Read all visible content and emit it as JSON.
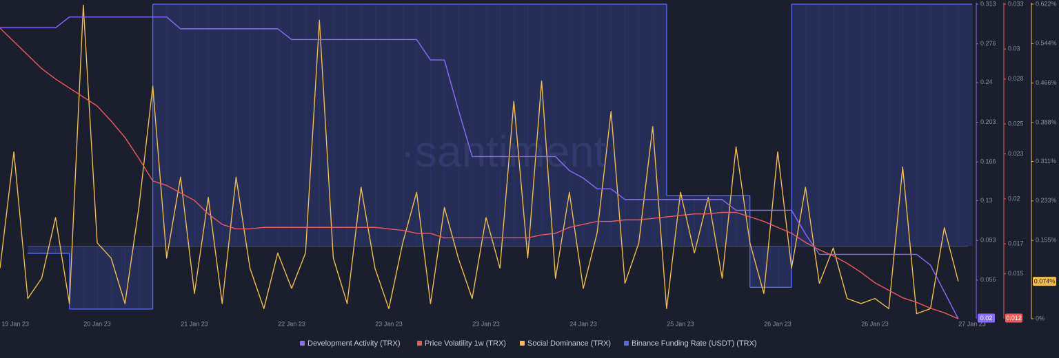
{
  "chart_data": {
    "type": "line",
    "watermark": "·santiment",
    "xlim": [
      0,
      70
    ],
    "xticks": [
      {
        "value": 1.1,
        "label": "19 Jan 23"
      },
      {
        "value": 7,
        "label": "20 Jan 23"
      },
      {
        "value": 14,
        "label": "21 Jan 23"
      },
      {
        "value": 21,
        "label": "22 Jan 23"
      },
      {
        "value": 28,
        "label": "23 Jan 23"
      },
      {
        "value": 35,
        "label": "23 Jan 23"
      },
      {
        "value": 42,
        "label": "24 Jan 23"
      },
      {
        "value": 49,
        "label": "25 Jan 23"
      },
      {
        "value": 56,
        "label": "26 Jan 23"
      },
      {
        "value": 63,
        "label": "26 Jan 23"
      },
      {
        "value": 70,
        "label": "27 Jan 23"
      }
    ],
    "series": [
      {
        "name": "Development Activity (TRX)",
        "color": "#8c6cff",
        "style": "line",
        "ylim": [
          0.02,
          0.313
        ],
        "yticks": [
          0.313,
          0.276,
          0.24,
          0.203,
          0.166,
          0.13,
          0.093,
          0.056
        ],
        "values": [
          0.291,
          0.291,
          0.291,
          0.291,
          0.291,
          0.301,
          0.301,
          0.301,
          0.301,
          0.301,
          0.301,
          0.301,
          0.301,
          0.29,
          0.29,
          0.29,
          0.29,
          0.29,
          0.29,
          0.29,
          0.29,
          0.28,
          0.28,
          0.28,
          0.28,
          0.28,
          0.28,
          0.28,
          0.28,
          0.28,
          0.28,
          0.261,
          0.261,
          0.215,
          0.171,
          0.171,
          0.171,
          0.171,
          0.171,
          0.171,
          0.171,
          0.158,
          0.151,
          0.141,
          0.141,
          0.131,
          0.131,
          0.131,
          0.131,
          0.131,
          0.131,
          0.131,
          0.131,
          0.121,
          0.121,
          0.121,
          0.121,
          0.121,
          0.099,
          0.08,
          0.08,
          0.08,
          0.08,
          0.08,
          0.08,
          0.08,
          0.08,
          0.07,
          0.045,
          0.02
        ]
      },
      {
        "name": "Price Volatility 1w (TRX)",
        "color": "#ef5b5b",
        "style": "line",
        "ylim": [
          0.012,
          0.033
        ],
        "yticks": [
          0.033,
          0.03,
          0.028,
          0.025,
          0.023,
          0.02,
          0.017,
          0.015
        ],
        "values": [
          0.0314,
          0.0305,
          0.0296,
          0.0287,
          0.028,
          0.0274,
          0.0268,
          0.0262,
          0.0252,
          0.0241,
          0.0227,
          0.0212,
          0.0209,
          0.0204,
          0.0199,
          0.019,
          0.0183,
          0.018,
          0.018,
          0.0181,
          0.0181,
          0.0181,
          0.0181,
          0.0181,
          0.0181,
          0.0181,
          0.0181,
          0.0181,
          0.018,
          0.0179,
          0.0177,
          0.0177,
          0.0174,
          0.0174,
          0.0174,
          0.0174,
          0.0174,
          0.0174,
          0.0174,
          0.0176,
          0.0177,
          0.0181,
          0.0183,
          0.0185,
          0.0185,
          0.0186,
          0.0186,
          0.0187,
          0.0188,
          0.0189,
          0.019,
          0.019,
          0.0191,
          0.0191,
          0.0188,
          0.0185,
          0.0181,
          0.0177,
          0.0171,
          0.0166,
          0.0162,
          0.0157,
          0.0151,
          0.0144,
          0.0139,
          0.0134,
          0.0131,
          0.0127,
          0.0124,
          0.012
        ]
      },
      {
        "name": "Social Dominance (TRX)",
        "color": "#f2bf4b",
        "style": "line",
        "ylim": [
          0,
          0.622
        ],
        "yticks": [
          {
            "value": 0.622,
            "label": "0.622%"
          },
          {
            "value": 0.544,
            "label": "0.544%"
          },
          {
            "value": 0.466,
            "label": "0.466%"
          },
          {
            "value": 0.388,
            "label": "0.388%"
          },
          {
            "value": 0.311,
            "label": "0.311%"
          },
          {
            "value": 0.233,
            "label": "0.233%"
          },
          {
            "value": 0.155,
            "label": "0.155%"
          },
          {
            "value": 0,
            "label": "0%"
          }
        ],
        "values": [
          0.1,
          0.33,
          0.04,
          0.08,
          0.2,
          0.03,
          0.62,
          0.15,
          0.12,
          0.03,
          0.22,
          0.46,
          0.12,
          0.28,
          0.05,
          0.24,
          0.03,
          0.28,
          0.1,
          0.02,
          0.13,
          0.06,
          0.13,
          0.59,
          0.12,
          0.03,
          0.26,
          0.1,
          0.02,
          0.15,
          0.25,
          0.03,
          0.22,
          0.12,
          0.04,
          0.2,
          0.1,
          0.43,
          0.12,
          0.47,
          0.08,
          0.25,
          0.06,
          0.17,
          0.41,
          0.07,
          0.15,
          0.38,
          0.02,
          0.25,
          0.13,
          0.24,
          0.08,
          0.34,
          0.15,
          0.05,
          0.33,
          0.1,
          0.26,
          0.07,
          0.14,
          0.04,
          0.03,
          0.04,
          0.02,
          0.3,
          0.01,
          0.02,
          0.18,
          0.074
        ],
        "value_labels": [
          null,
          null,
          null,
          null,
          null,
          null,
          null,
          null,
          null,
          null,
          null,
          null,
          null,
          null,
          null,
          null,
          null,
          null,
          null,
          null,
          null,
          null,
          null,
          null,
          null,
          null,
          null,
          null,
          null,
          null,
          null,
          null,
          null,
          null,
          null,
          null,
          null,
          null,
          null,
          null,
          null,
          null,
          null,
          null,
          null,
          null,
          null,
          null,
          null,
          null,
          null,
          null,
          null,
          null,
          null,
          null,
          null,
          null,
          null,
          null,
          null,
          null,
          null,
          null,
          null,
          null,
          null,
          null,
          null,
          "0.074%"
        ]
      },
      {
        "name": "Binance Funding Rate (USDT) (TRX)",
        "color": "#5468ff",
        "style": "step-area",
        "ylim": [
          -0.003,
          0.01
        ],
        "values": [
          null,
          null,
          -0.0003,
          -0.0003,
          -0.0003,
          -0.0026,
          -0.0026,
          -0.0026,
          -0.0026,
          -0.0026,
          -0.0026,
          0.01,
          0.01,
          0.01,
          0.01,
          0.01,
          0.01,
          0.01,
          0.01,
          0.01,
          0.01,
          0.01,
          0.01,
          0.01,
          0.01,
          0.01,
          0.01,
          0.01,
          0.01,
          0.01,
          0.01,
          0.01,
          0.01,
          0.01,
          0.01,
          0.01,
          0.01,
          0.01,
          0.01,
          0.01,
          0.01,
          0.01,
          0.01,
          0.01,
          0.01,
          0.01,
          0.01,
          0.01,
          0.0021,
          0.0021,
          0.0021,
          0.0021,
          0.0021,
          0.0021,
          -0.0017,
          -0.0017,
          -0.0017,
          0.01,
          0.01,
          0.01,
          0.01,
          0.01,
          0.01,
          0.01,
          0.01,
          0.01,
          0.01,
          0.01,
          0.01,
          0.01
        ]
      }
    ]
  }
}
